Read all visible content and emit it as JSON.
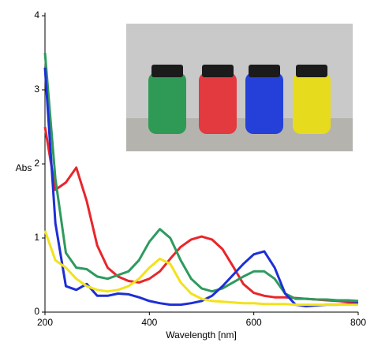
{
  "chart_data": {
    "type": "line",
    "x_label": "Wavelength [nm]",
    "y_label": "Abs",
    "x": [
      200,
      220,
      240,
      260,
      280,
      300,
      320,
      340,
      360,
      380,
      400,
      420,
      440,
      460,
      480,
      500,
      520,
      540,
      560,
      580,
      600,
      620,
      640,
      660,
      680,
      700,
      720,
      740,
      760,
      780,
      800
    ],
    "series": [
      {
        "color": "#e8262a",
        "values": [
          2.5,
          1.65,
          1.75,
          1.95,
          1.5,
          0.9,
          0.6,
          0.48,
          0.42,
          0.4,
          0.45,
          0.55,
          0.72,
          0.88,
          0.98,
          1.02,
          0.98,
          0.85,
          0.62,
          0.38,
          0.26,
          0.22,
          0.2,
          0.2,
          0.19,
          0.18,
          0.17,
          0.16,
          0.15,
          0.14,
          0.13
        ]
      },
      {
        "color": "#2e9a5e",
        "values": [
          3.5,
          1.8,
          0.8,
          0.6,
          0.58,
          0.48,
          0.45,
          0.5,
          0.55,
          0.7,
          0.95,
          1.12,
          1.0,
          0.7,
          0.45,
          0.32,
          0.28,
          0.32,
          0.4,
          0.48,
          0.55,
          0.55,
          0.45,
          0.25,
          0.18,
          0.18,
          0.17,
          0.17,
          0.16,
          0.16,
          0.15
        ]
      },
      {
        "color": "#1c2fd6",
        "values": [
          3.3,
          1.2,
          0.35,
          0.3,
          0.38,
          0.22,
          0.22,
          0.25,
          0.24,
          0.2,
          0.15,
          0.12,
          0.1,
          0.1,
          0.12,
          0.15,
          0.22,
          0.35,
          0.5,
          0.65,
          0.78,
          0.82,
          0.6,
          0.25,
          0.1,
          0.08,
          0.09,
          0.1,
          0.1,
          0.11,
          0.12
        ]
      },
      {
        "color": "#f2e21a",
        "values": [
          1.1,
          0.7,
          0.6,
          0.45,
          0.35,
          0.3,
          0.28,
          0.3,
          0.35,
          0.45,
          0.6,
          0.72,
          0.65,
          0.4,
          0.25,
          0.18,
          0.15,
          0.14,
          0.13,
          0.12,
          0.12,
          0.11,
          0.11,
          0.11,
          0.1,
          0.1,
          0.1,
          0.1,
          0.1,
          0.1,
          0.1
        ]
      }
    ],
    "xlim": [
      200,
      800
    ],
    "xticks": [
      200,
      400,
      600,
      800
    ],
    "ylim": [
      0,
      4
    ],
    "yticks": [
      0,
      1,
      2,
      3,
      4
    ]
  }
}
